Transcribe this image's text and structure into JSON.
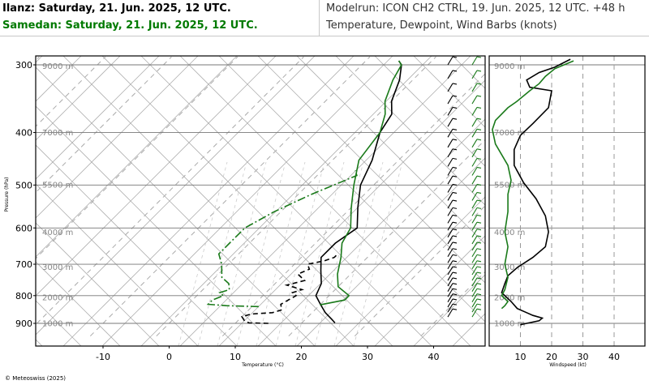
{
  "header": {
    "station1": "Ilanz: Saturday, 21. Jun. 2025, 12 UTC.",
    "station2": "Samedan: Saturday, 21. Jun. 2025, 12 UTC.",
    "modelrun": "Modelrun: ICON CH2 CTRL, 19. Jun. 2025, 12 UTC. +48 h",
    "subtitle": "Temperature, Dewpoint, Wind Barbs (knots)"
  },
  "footer": {
    "copyright": "© Meteoswiss (2025)"
  },
  "colors": {
    "station1": "#000000",
    "station2": "#1a7a1a",
    "grid": "#9a9a9a",
    "frame": "#000000"
  },
  "chart_data": [
    {
      "type": "line",
      "title": "",
      "xlabel": "Temperature (°C)",
      "ylabel": "Pressure (hPa)",
      "xlim": [
        -25,
        45
      ],
      "ylim": [
        950,
        290
      ],
      "yscale": "log",
      "x_ticks": [
        "-10",
        "0",
        "10",
        "20",
        "30",
        "40"
      ],
      "y_ticks": [
        "300",
        "400",
        "500",
        "600",
        "700",
        "800",
        "900"
      ],
      "altitude_labels": [
        "9000 m",
        "7000 m",
        "5500 m",
        "4000 m",
        "3000 m",
        "2000 m",
        "1000 m"
      ],
      "altitude_pressures": [
        301,
        399,
        499,
        610,
        707,
        805,
        898
      ],
      "series": [
        {
          "role": "temperature",
          "station": 1,
          "color": "#000000",
          "dash": "",
          "points": [
            [
              25,
              898
            ],
            [
              24,
              885
            ],
            [
              22,
              860
            ],
            [
              20,
              830
            ],
            [
              18,
              800
            ],
            [
              17,
              760
            ],
            [
              15,
              720
            ],
            [
              13,
              680
            ],
            [
              13,
              640
            ],
            [
              14,
              600
            ],
            [
              11,
              550
            ],
            [
              8,
              500
            ],
            [
              6,
              450
            ],
            [
              3,
              400
            ],
            [
              2,
              370
            ],
            [
              0,
              350
            ],
            [
              -2,
              320
            ],
            [
              -4,
              300
            ],
            [
              -5,
              295
            ]
          ]
        },
        {
          "role": "dewpoint",
          "station": 1,
          "color": "#000000",
          "dash": "6,4",
          "points": [
            [
              15,
              900
            ],
            [
              12,
              898
            ],
            [
              11,
              890
            ],
            [
              10,
              875
            ],
            [
              11,
              865
            ],
            [
              14,
              860
            ],
            [
              15,
              850
            ],
            [
              14,
              830
            ],
            [
              15,
              800
            ],
            [
              14,
              790
            ],
            [
              15,
              780
            ],
            [
              12,
              765
            ],
            [
              14,
              750
            ],
            [
              12,
              730
            ],
            [
              13,
              715
            ],
            [
              12,
              700
            ],
            [
              14,
              690
            ],
            [
              15,
              680
            ],
            [
              15,
              670
            ]
          ]
        },
        {
          "role": "temperature",
          "station": 2,
          "color": "#1a7a1a",
          "dash": "",
          "points": [
            [
              20,
              832
            ],
            [
              23,
              815
            ],
            [
              23,
              800
            ],
            [
              20,
              770
            ],
            [
              18,
              730
            ],
            [
              16,
              680
            ],
            [
              14,
              640
            ],
            [
              13,
              600
            ],
            [
              10,
              550
            ],
            [
              7,
              500
            ],
            [
              4,
              450
            ],
            [
              3,
              400
            ],
            [
              1,
              370
            ],
            [
              -1,
              350
            ],
            [
              -3,
              320
            ],
            [
              -4,
              300
            ],
            [
              -5,
              295
            ]
          ]
        },
        {
          "role": "dewpoint",
          "station": 2,
          "color": "#1a7a1a",
          "dash": "10,3,2,3",
          "points": [
            [
              11,
              838
            ],
            [
              6,
              835
            ],
            [
              3,
              830
            ],
            [
              3,
              815
            ],
            [
              4,
              800
            ],
            [
              3,
              790
            ],
            [
              4,
              780
            ],
            [
              3,
              760
            ],
            [
              1,
              740
            ],
            [
              0,
              720
            ],
            [
              -1,
              700
            ],
            [
              -3,
              670
            ],
            [
              -3,
              640
            ],
            [
              -3,
              600
            ],
            [
              -1,
              560
            ],
            [
              2,
              520
            ],
            [
              6,
              480
            ],
            [
              5,
              470
            ]
          ]
        }
      ]
    },
    {
      "type": "line",
      "title": "",
      "xlabel": "Windspeed (kt)",
      "ylabel": "",
      "xlim": [
        0,
        48
      ],
      "ylim": [
        950,
        290
      ],
      "yscale": "log",
      "x_ticks": [
        "10",
        "20",
        "30",
        "40"
      ],
      "altitude_labels": [
        "9000 m",
        "7000 m",
        "5500 m",
        "4000 m",
        "3000 m",
        "2000 m",
        "1000 m"
      ],
      "altitude_pressures": [
        301,
        399,
        499,
        610,
        707,
        805,
        898
      ],
      "series": [
        {
          "station": 1,
          "color": "#000000",
          "points": [
            [
              10,
              905
            ],
            [
              16,
              890
            ],
            [
              17,
              880
            ],
            [
              14,
              870
            ],
            [
              12,
              860
            ],
            [
              9,
              845
            ],
            [
              7,
              820
            ],
            [
              5,
              800
            ],
            [
              4,
              790
            ],
            [
              5,
              760
            ],
            [
              6,
              735
            ],
            [
              9,
              710
            ],
            [
              14,
              680
            ],
            [
              18,
              650
            ],
            [
              19,
              610
            ],
            [
              18,
              570
            ],
            [
              15,
              530
            ],
            [
              11,
              495
            ],
            [
              8,
              460
            ],
            [
              8,
              430
            ],
            [
              10,
              405
            ],
            [
              14,
              385
            ],
            [
              19,
              360
            ],
            [
              20,
              335
            ],
            [
              13,
              330
            ],
            [
              12,
              320
            ],
            [
              16,
              310
            ],
            [
              21,
              303
            ],
            [
              26,
              293
            ]
          ]
        },
        {
          "station": 2,
          "color": "#1a7a1a",
          "points": [
            [
              4,
              845
            ],
            [
              5,
              835
            ],
            [
              6,
              820
            ],
            [
              4,
              800
            ],
            [
              5,
              780
            ],
            [
              6,
              740
            ],
            [
              5,
              700
            ],
            [
              6,
              650
            ],
            [
              5,
              610
            ],
            [
              6,
              560
            ],
            [
              6,
              520
            ],
            [
              7,
              490
            ],
            [
              6,
              460
            ],
            [
              2,
              420
            ],
            [
              1,
              395
            ],
            [
              2,
              380
            ],
            [
              6,
              360
            ],
            [
              9,
              350
            ],
            [
              13,
              335
            ],
            [
              16,
              325
            ],
            [
              18,
              315
            ],
            [
              21,
              305
            ],
            [
              27,
              295
            ]
          ]
        }
      ]
    }
  ]
}
